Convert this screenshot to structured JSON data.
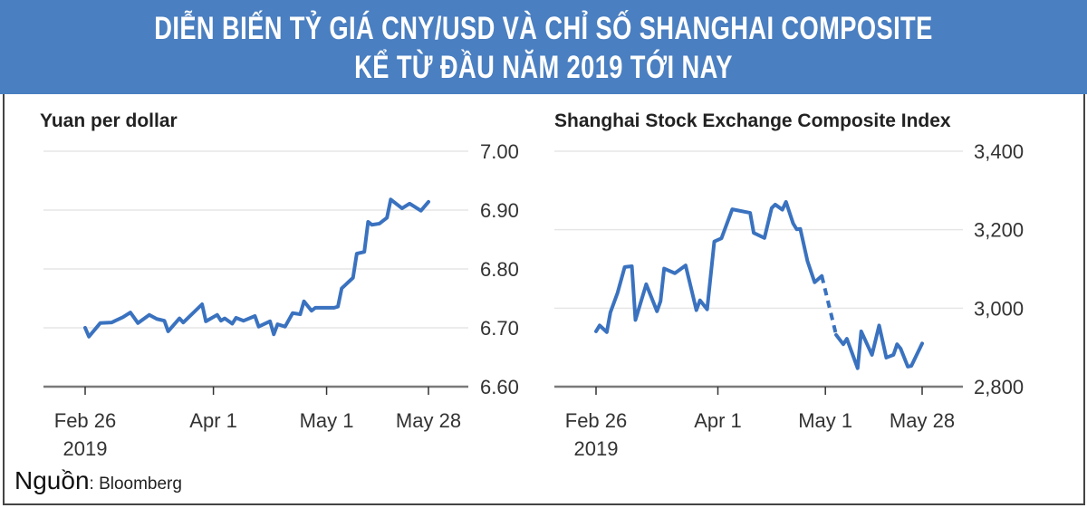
{
  "header": {
    "title_line1": "DIỄN BIẾN TỶ GIÁ CNY/USD VÀ CHỈ SỐ SHANGHAI COMPOSITE",
    "title_line2": "KỂ TỪ ĐẦU NĂM 2019 TỚI NAY",
    "background_color": "#4a7fc1"
  },
  "source": {
    "label": "Nguồn",
    "value": ": Bloomberg"
  },
  "chart_data": [
    {
      "type": "line",
      "title": "Yuan per dollar",
      "color": "#3a72bf",
      "xlim": [
        "2019-02-26",
        "2019-05-28"
      ],
      "x_ticks": [
        {
          "date": "2019-02-26",
          "label": "Feb 26",
          "sublabel": "2019"
        },
        {
          "date": "2019-04-01",
          "label": "Apr 1"
        },
        {
          "date": "2019-05-01",
          "label": "May 1"
        },
        {
          "date": "2019-05-28",
          "label": "May 28"
        }
      ],
      "ylim": [
        6.6,
        7.0
      ],
      "y_ticks": [
        {
          "value": 7.0,
          "label": "7.00"
        },
        {
          "value": 6.9,
          "label": "6.90"
        },
        {
          "value": 6.8,
          "label": "6.80"
        },
        {
          "value": 6.7,
          "label": "6.70"
        },
        {
          "value": 6.6,
          "label": "6.60"
        }
      ],
      "y_axis_position": "right",
      "grid": true,
      "points": [
        [
          "2019-02-26",
          6.7
        ],
        [
          "2019-02-27",
          6.685
        ],
        [
          "2019-03-02",
          6.708
        ],
        [
          "2019-03-05",
          6.709
        ],
        [
          "2019-03-08",
          6.718
        ],
        [
          "2019-03-10",
          6.726
        ],
        [
          "2019-03-12",
          6.708
        ],
        [
          "2019-03-15",
          6.722
        ],
        [
          "2019-03-17",
          6.715
        ],
        [
          "2019-03-19",
          6.712
        ],
        [
          "2019-03-20",
          6.694
        ],
        [
          "2019-03-23",
          6.716
        ],
        [
          "2019-03-24",
          6.709
        ],
        [
          "2019-03-29",
          6.74
        ],
        [
          "2019-03-30",
          6.711
        ],
        [
          "2019-04-02",
          6.722
        ],
        [
          "2019-04-03",
          6.712
        ],
        [
          "2019-04-04",
          6.716
        ],
        [
          "2019-04-06",
          6.707
        ],
        [
          "2019-04-07",
          6.717
        ],
        [
          "2019-04-09",
          6.712
        ],
        [
          "2019-04-12",
          6.72
        ],
        [
          "2019-04-13",
          6.702
        ],
        [
          "2019-04-16",
          6.711
        ],
        [
          "2019-04-17",
          6.689
        ],
        [
          "2019-04-18",
          6.706
        ],
        [
          "2019-04-20",
          6.702
        ],
        [
          "2019-04-22",
          6.725
        ],
        [
          "2019-04-24",
          6.723
        ],
        [
          "2019-04-25",
          6.745
        ],
        [
          "2019-04-27",
          6.729
        ],
        [
          "2019-04-28",
          6.734
        ],
        [
          "2019-05-03",
          6.734
        ],
        [
          "2019-05-04",
          6.736
        ],
        [
          "2019-05-05",
          6.767
        ],
        [
          "2019-05-08",
          6.785
        ],
        [
          "2019-05-09",
          6.826
        ],
        [
          "2019-05-11",
          6.829
        ],
        [
          "2019-05-12",
          6.88
        ],
        [
          "2019-05-13",
          6.875
        ],
        [
          "2019-05-15",
          6.877
        ],
        [
          "2019-05-17",
          6.887
        ],
        [
          "2019-05-18",
          6.918
        ],
        [
          "2019-05-21",
          6.903
        ],
        [
          "2019-05-23",
          6.911
        ],
        [
          "2019-05-26",
          6.899
        ],
        [
          "2019-05-28",
          6.914
        ]
      ]
    },
    {
      "type": "line",
      "title": "Shanghai Stock Exchange Composite Index",
      "color": "#3a72bf",
      "xlim": [
        "2019-02-26",
        "2019-05-28"
      ],
      "x_ticks": [
        {
          "date": "2019-02-26",
          "label": "Feb 26",
          "sublabel": "2019"
        },
        {
          "date": "2019-04-01",
          "label": "Apr 1"
        },
        {
          "date": "2019-05-01",
          "label": "May 1"
        },
        {
          "date": "2019-05-28",
          "label": "May 28"
        }
      ],
      "ylim": [
        2800,
        3400
      ],
      "y_ticks": [
        {
          "value": 3400,
          "label": "3,400"
        },
        {
          "value": 3200,
          "label": "3,200"
        },
        {
          "value": 3000,
          "label": "3,000"
        },
        {
          "value": 2800,
          "label": "2,800"
        }
      ],
      "y_axis_position": "right",
      "grid": true,
      "dashed_between": [
        "2019-04-30",
        "2019-05-04"
      ],
      "points": [
        [
          "2019-02-26",
          2941
        ],
        [
          "2019-02-27",
          2956
        ],
        [
          "2019-03-01",
          2939
        ],
        [
          "2019-03-02",
          2989
        ],
        [
          "2019-03-04",
          3039
        ],
        [
          "2019-03-06",
          3105
        ],
        [
          "2019-03-08",
          3107
        ],
        [
          "2019-03-09",
          2970
        ],
        [
          "2019-03-12",
          3061
        ],
        [
          "2019-03-15",
          2992
        ],
        [
          "2019-03-16",
          3018
        ],
        [
          "2019-03-17",
          3101
        ],
        [
          "2019-03-20",
          3089
        ],
        [
          "2019-03-23",
          3109
        ],
        [
          "2019-03-26",
          2995
        ],
        [
          "2019-03-27",
          3020
        ],
        [
          "2019-03-29",
          2997
        ],
        [
          "2019-03-31",
          3170
        ],
        [
          "2019-04-02",
          3178
        ],
        [
          "2019-04-05",
          3252
        ],
        [
          "2019-04-10",
          3243
        ],
        [
          "2019-04-11",
          3192
        ],
        [
          "2019-04-14",
          3179
        ],
        [
          "2019-04-16",
          3255
        ],
        [
          "2019-04-17",
          3264
        ],
        [
          "2019-04-19",
          3251
        ],
        [
          "2019-04-20",
          3271
        ],
        [
          "2019-04-22",
          3216
        ],
        [
          "2019-04-23",
          3201
        ],
        [
          "2019-04-24",
          3202
        ],
        [
          "2019-04-26",
          3120
        ],
        [
          "2019-04-28",
          3066
        ],
        [
          "2019-04-30",
          3082
        ],
        [
          "2019-05-04",
          2932
        ],
        [
          "2019-05-06",
          2908
        ],
        [
          "2019-05-07",
          2922
        ],
        [
          "2019-05-10",
          2847
        ],
        [
          "2019-05-11",
          2941
        ],
        [
          "2019-05-14",
          2881
        ],
        [
          "2019-05-16",
          2956
        ],
        [
          "2019-05-18",
          2874
        ],
        [
          "2019-05-20",
          2881
        ],
        [
          "2019-05-21",
          2908
        ],
        [
          "2019-05-22",
          2897
        ],
        [
          "2019-05-24",
          2851
        ],
        [
          "2019-05-25",
          2853
        ],
        [
          "2019-05-28",
          2910
        ]
      ]
    }
  ]
}
